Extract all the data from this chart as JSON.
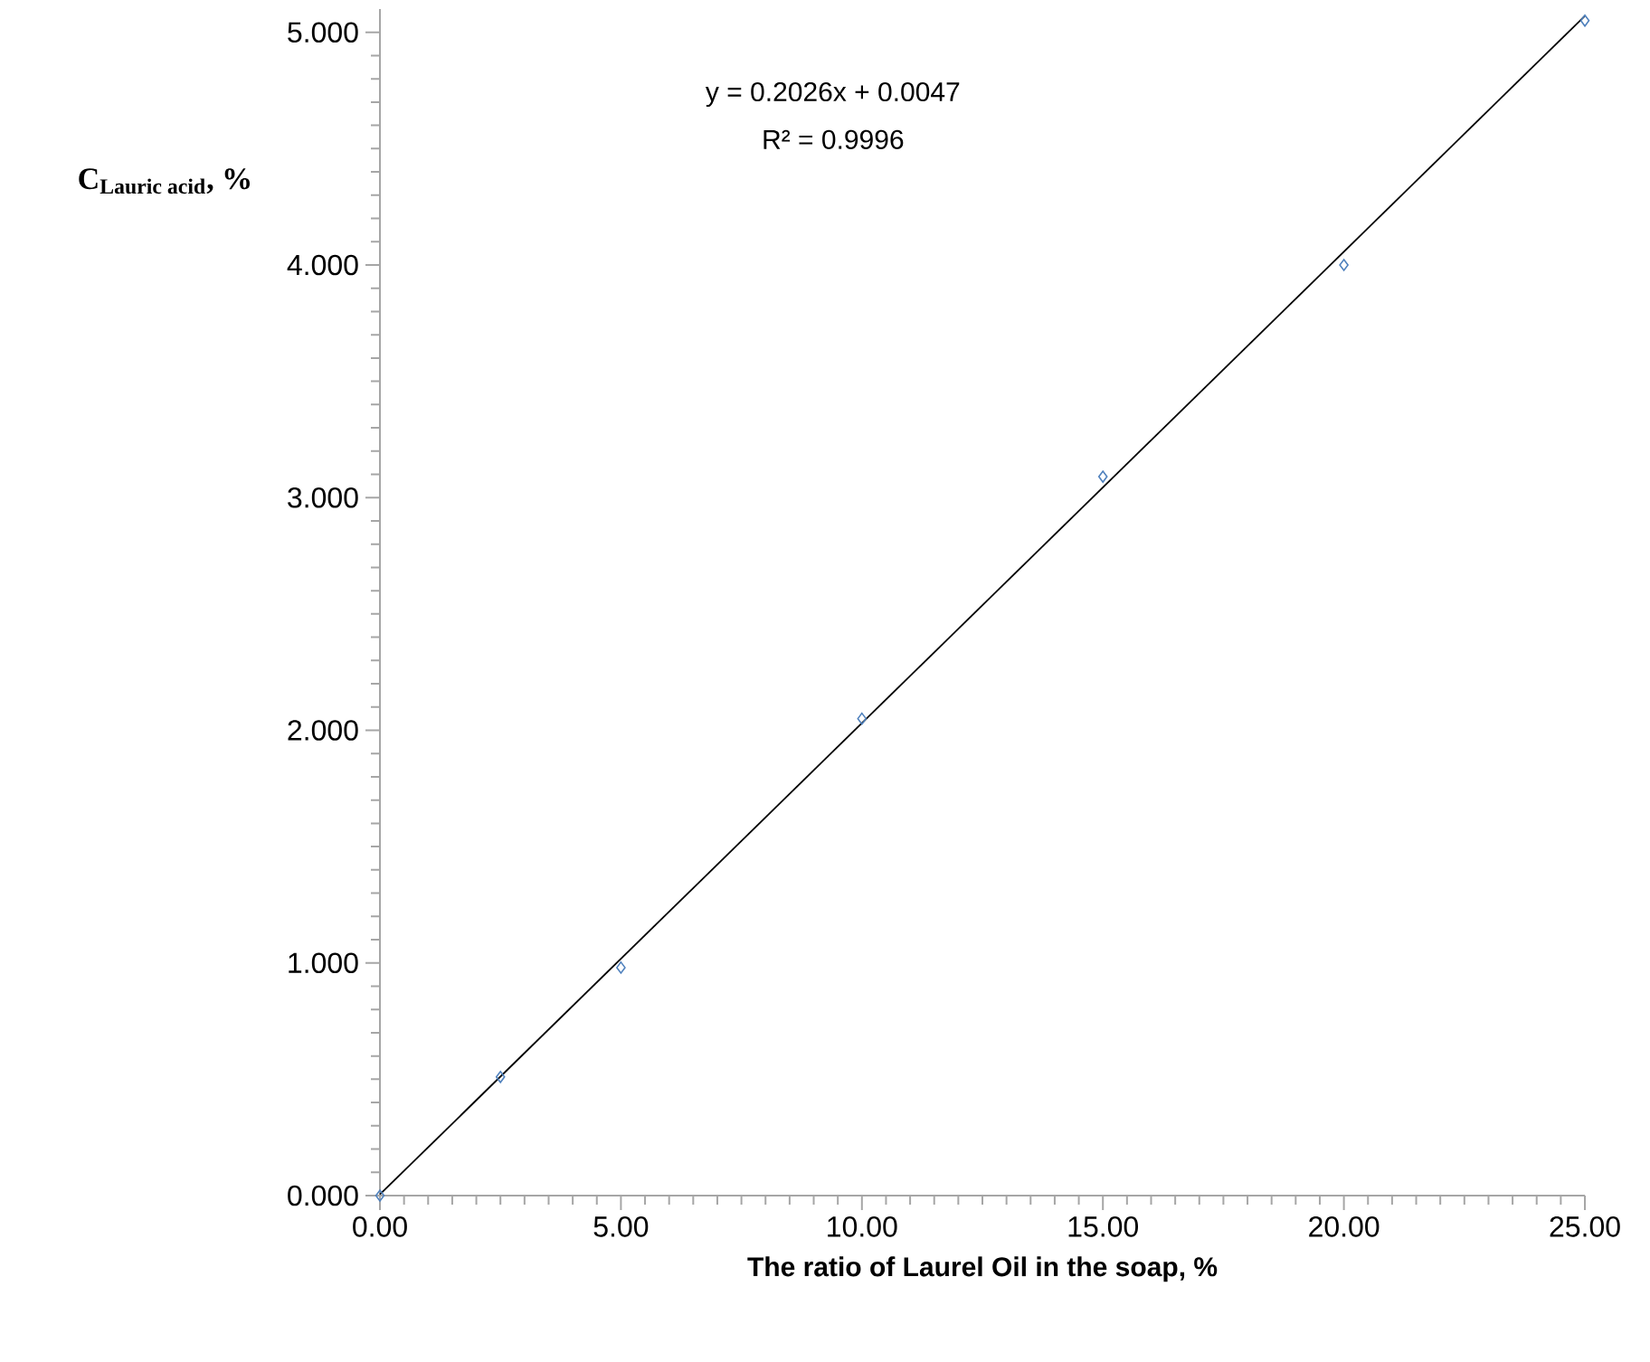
{
  "chart_data": {
    "type": "scatter",
    "xlabel": "The ratio of Laurel Oil in the soap, %",
    "ylabel": "\\text{C}_{\\text{Lauric acid}}\\text{, \\%}",
    "annotations": [
      "y = 0.2026x + 0.0047",
      "R² = 0.9996"
    ],
    "x": [
      0,
      2.5,
      5,
      10,
      15,
      20,
      25
    ],
    "series": [
      {
        "color": "#4f81bd",
        "values": [
          0,
          0.51,
          0.98,
          2.05,
          3.09,
          4.0,
          5.05
        ]
      },
      {
        "type": "line",
        "x": [
          0,
          25
        ],
        "values": [
          0.005,
          5.07
        ],
        "color": "#000000",
        "marker": "none"
      }
    ],
    "marker": "diamond",
    "xlim": [
      0,
      25
    ],
    "ylim": [
      0,
      5.1
    ],
    "xticks": [
      {
        "value": 0,
        "label": "0.00"
      },
      {
        "value": 5,
        "label": "5.00"
      },
      {
        "value": 10,
        "label": "10.00"
      },
      {
        "value": 15,
        "label": "15.00"
      },
      {
        "value": 20,
        "label": "20.00"
      },
      {
        "value": 25,
        "label": "25.00"
      }
    ],
    "yticks": [
      {
        "value": 0,
        "label": "0.000"
      },
      {
        "value": 1,
        "label": "1.000"
      },
      {
        "value": 2,
        "label": "2.000"
      },
      {
        "value": 3,
        "label": "3.000"
      },
      {
        "value": 4,
        "label": "4.000"
      },
      {
        "value": 5,
        "label": "5.000"
      }
    ]
  }
}
